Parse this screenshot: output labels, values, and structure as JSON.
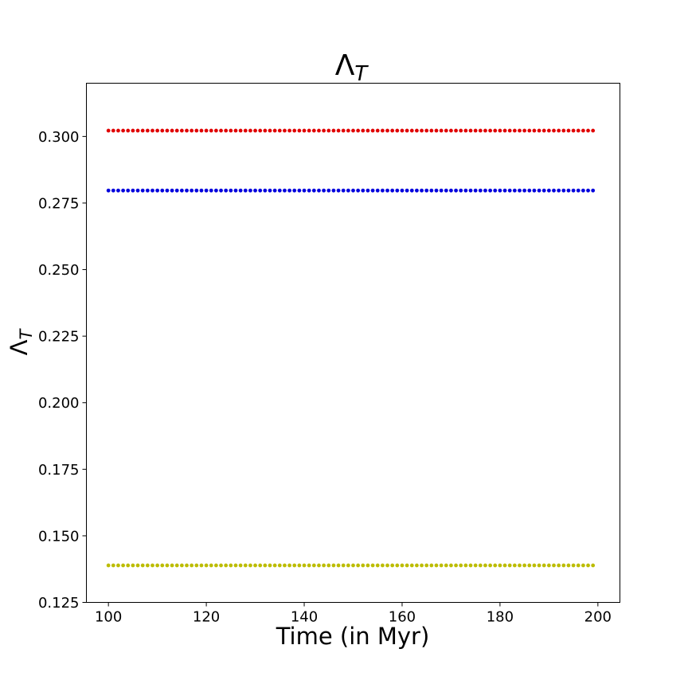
{
  "chart_data": {
    "type": "scatter",
    "title": {
      "main": "Λ",
      "sub": "T"
    },
    "xlabel": "Time (in Myr)",
    "ylabel": {
      "main": "Λ",
      "sub": "T"
    },
    "xlim": [
      95.5,
      204.5
    ],
    "ylim": [
      0.125,
      0.32
    ],
    "xticks": [
      100,
      120,
      140,
      160,
      180,
      200
    ],
    "xtick_labels": [
      "100",
      "120",
      "140",
      "160",
      "180",
      "200"
    ],
    "yticks": [
      0.125,
      0.15,
      0.175,
      0.2,
      0.225,
      0.25,
      0.275,
      0.3
    ],
    "ytick_labels": [
      "0.125",
      "0.150",
      "0.175",
      "0.200",
      "0.225",
      "0.250",
      "0.275",
      "0.300"
    ],
    "grid": false,
    "x": {
      "start": 100,
      "end": 199,
      "step": 1
    },
    "series": [
      {
        "color": "#e00000",
        "value": 0.3022
      },
      {
        "color": "#0000dd",
        "value": 0.2797
      },
      {
        "color": "#bcbc00",
        "value": 0.1389
      }
    ]
  }
}
